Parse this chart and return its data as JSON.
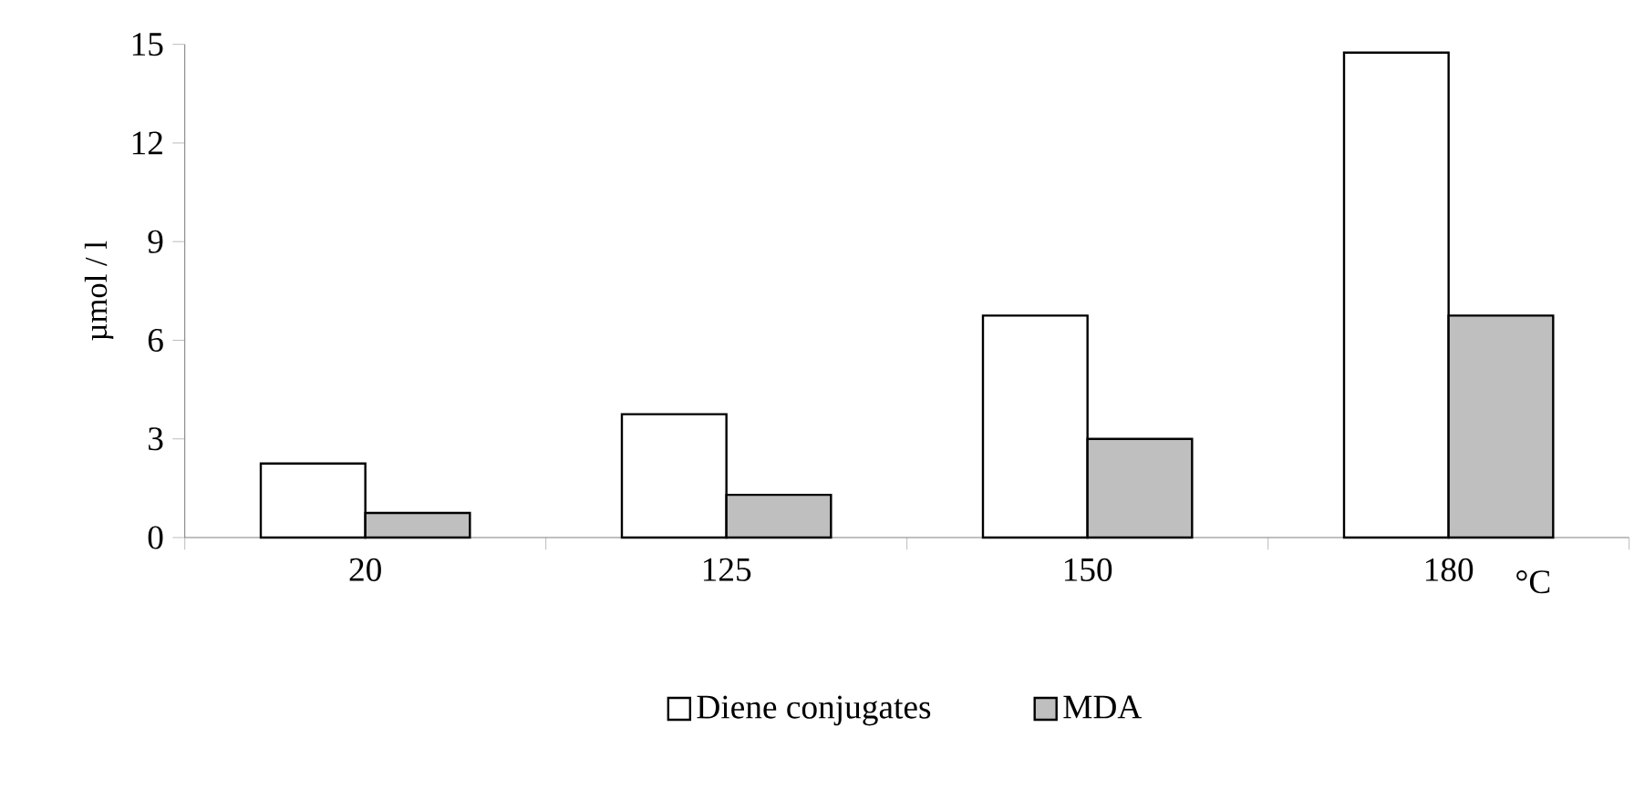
{
  "chart_data": {
    "type": "bar",
    "xlabel": "°C",
    "ylabel": "µmol / l",
    "categories": [
      "20",
      "125",
      "150",
      "180"
    ],
    "series": [
      {
        "name": "Diene conjugates",
        "color": "#ffffff",
        "values": [
          2.25,
          3.75,
          6.75,
          14.75
        ]
      },
      {
        "name": "MDA",
        "color": "#bfbfbf",
        "values": [
          0.75,
          1.3,
          3.0,
          6.75
        ]
      }
    ],
    "ylim": [
      0,
      15
    ],
    "yticks": [
      0,
      3,
      6,
      9,
      12,
      15
    ],
    "grid": false,
    "legend": "bottom"
  }
}
